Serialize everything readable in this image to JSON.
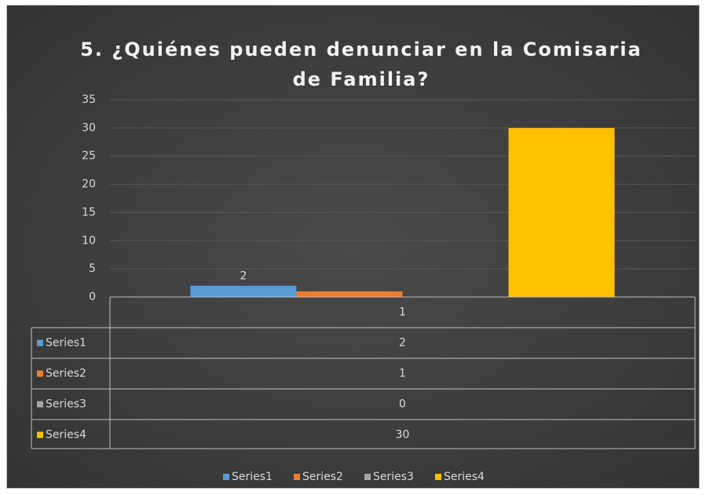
{
  "chart_data": {
    "type": "bar",
    "title": "5. ¿Quiénes pueden denunciar en la Comisaria de Familia?",
    "categories": [
      "1"
    ],
    "series": [
      {
        "name": "Series1",
        "color": "#5b9bd5",
        "values": [
          2
        ],
        "show_value_labels": true
      },
      {
        "name": "Series2",
        "color": "#ed7d31",
        "values": [
          1
        ],
        "show_value_labels": false
      },
      {
        "name": "Series3",
        "color": "#a5a5a5",
        "values": [
          0
        ],
        "show_value_labels": false
      },
      {
        "name": "Series4",
        "color": "#ffc000",
        "values": [
          30
        ],
        "show_value_labels": false
      }
    ],
    "ylim": [
      0,
      35
    ],
    "yticks": [
      0,
      5,
      10,
      15,
      20,
      25,
      30,
      35
    ],
    "grid": true,
    "data_table": true,
    "legend": "bottom"
  }
}
